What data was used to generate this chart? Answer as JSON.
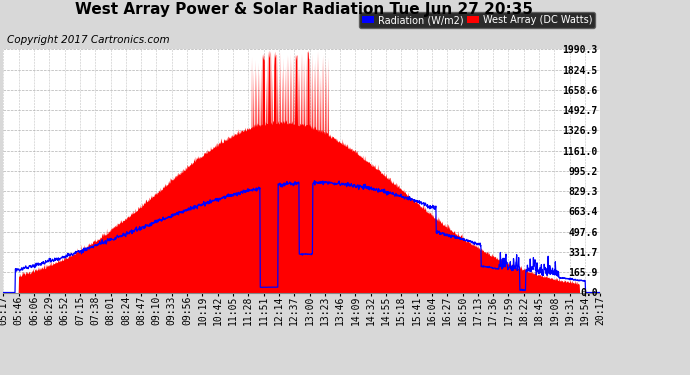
{
  "title": "West Array Power & Solar Radiation Tue Jun 27 20:35",
  "copyright": "Copyright 2017 Cartronics.com",
  "yticks": [
    0.0,
    165.9,
    331.7,
    497.6,
    663.4,
    829.3,
    995.2,
    1161.0,
    1326.9,
    1492.7,
    1658.6,
    1824.5,
    1990.3
  ],
  "ymax": 1990.3,
  "ymin": 0.0,
  "bg_color": "#d8d8d8",
  "plot_bg_color": "#ffffff",
  "grid_color": "#aaaaaa",
  "red_fill_color": "#ff0000",
  "blue_line_color": "#0000ff",
  "legend_radiation_label": "Radiation (W/m2)",
  "legend_west_label": "West Array (DC Watts)",
  "title_fontsize": 11,
  "tick_fontsize": 7,
  "copyright_fontsize": 7.5,
  "time_labels": [
    "05:17",
    "05:46",
    "06:06",
    "06:29",
    "06:52",
    "07:15",
    "07:38",
    "08:01",
    "08:24",
    "08:47",
    "09:10",
    "09:33",
    "09:56",
    "10:19",
    "10:42",
    "11:05",
    "11:28",
    "11:51",
    "12:14",
    "12:37",
    "13:00",
    "13:23",
    "13:46",
    "14:09",
    "14:32",
    "14:55",
    "15:18",
    "15:41",
    "16:04",
    "16:27",
    "16:50",
    "17:13",
    "17:36",
    "17:59",
    "18:22",
    "18:45",
    "19:08",
    "19:31",
    "19:54",
    "20:17"
  ]
}
